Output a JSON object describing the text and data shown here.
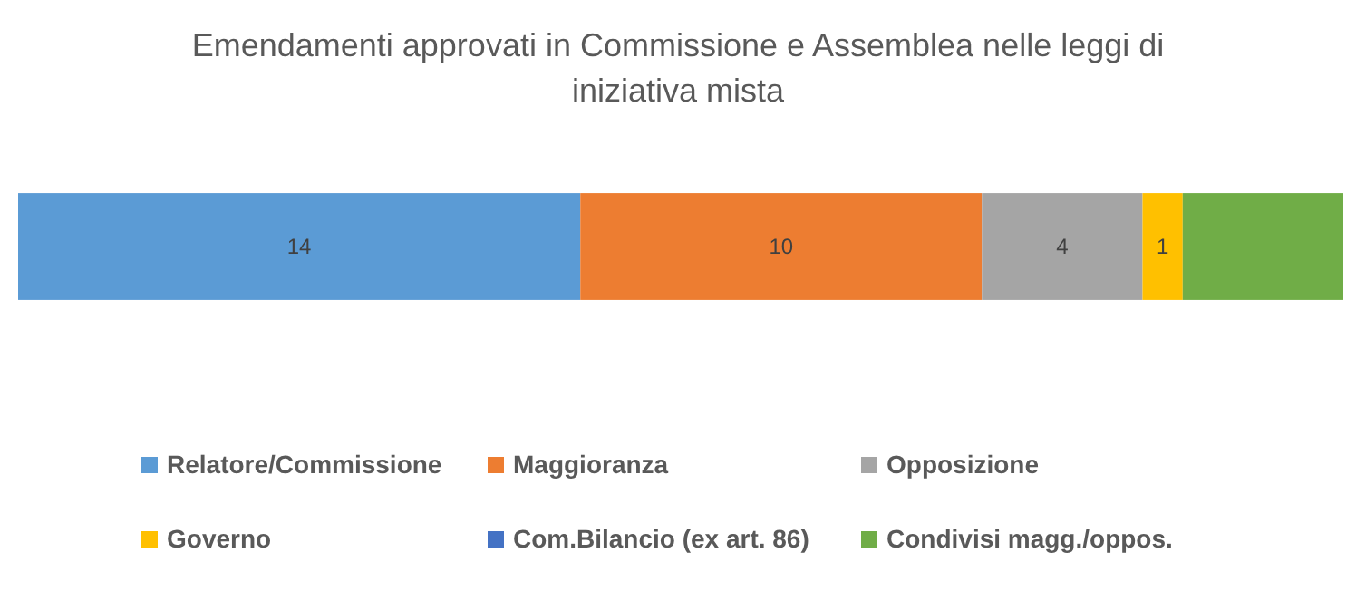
{
  "chart_data": {
    "type": "bar",
    "orientation": "horizontal",
    "stacked": true,
    "title": "Emendamenti approvati in Commissione e Assemblea nelle leggi di iniziativa mista",
    "categories": [
      null
    ],
    "series": [
      {
        "name": "Relatore/Commissione",
        "color": "#5b9bd5",
        "values": [
          14
        ],
        "value_labels": [
          "14"
        ]
      },
      {
        "name": "Maggioranza",
        "color": "#ed7d31",
        "values": [
          10
        ],
        "value_labels": [
          "10"
        ]
      },
      {
        "name": "Opposizione",
        "color": "#a5a5a5",
        "values": [
          4
        ],
        "value_labels": [
          "4"
        ]
      },
      {
        "name": "Governo",
        "color": "#ffc000",
        "values": [
          1
        ],
        "value_labels": [
          "1"
        ]
      },
      {
        "name": "Com.Bilancio (ex art. 86)",
        "color": "#4472c4",
        "values": [
          0
        ],
        "value_labels": [
          null
        ]
      },
      {
        "name": "Condivisi magg./oppos.",
        "color": "#70ad47",
        "values": [
          4
        ],
        "value_labels": [
          null
        ]
      }
    ],
    "legend": "bottom"
  }
}
